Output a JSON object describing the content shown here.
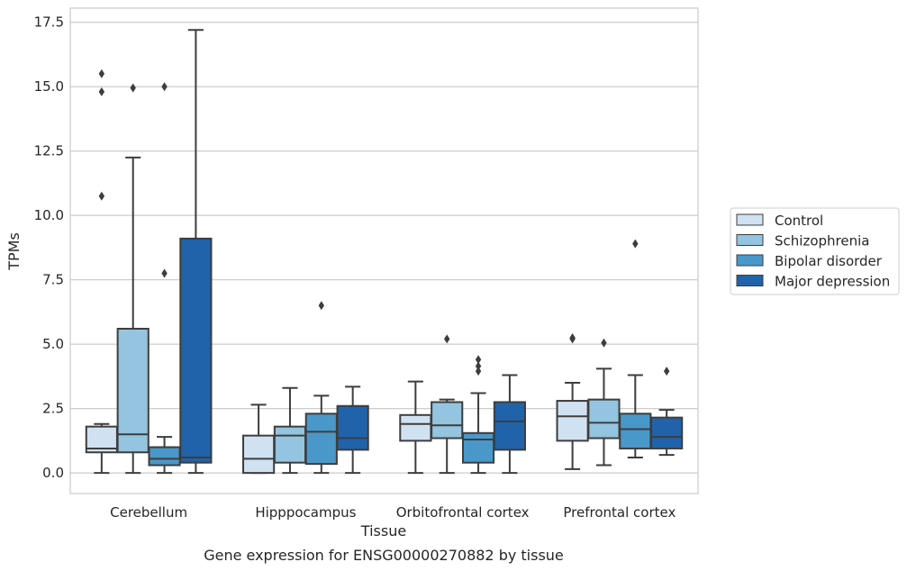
{
  "chart_data": {
    "type": "box",
    "caption": "Gene expression for ENSG00000270882 by tissue",
    "xlabel": "Tissue",
    "ylabel": "TPMs",
    "ylim": [
      -0.8,
      18.05
    ],
    "yticks": [
      0.0,
      2.5,
      5.0,
      7.5,
      10.0,
      12.5,
      15.0,
      17.5
    ],
    "ytick_labels": [
      "0.0",
      "2.5",
      "5.0",
      "7.5",
      "10.0",
      "12.5",
      "15.0",
      "17.5"
    ],
    "grid": "horizontal",
    "legend_position": "right",
    "categories": [
      "Cerebellum",
      "Hipppocampus",
      "Orbitofrontal cortex",
      "Prefrontal cortex"
    ],
    "series": [
      {
        "name": "Control",
        "color": "#d0e1f2",
        "boxes": [
          {
            "whislo": 0.0,
            "q1": 0.8,
            "med": 0.95,
            "q3": 1.8,
            "whishi": 1.9,
            "fliers": [
              15.5,
              14.8,
              10.75
            ]
          },
          {
            "whislo": 0.0,
            "q1": 0.0,
            "med": 0.55,
            "q3": 1.45,
            "whishi": 2.65,
            "fliers": []
          },
          {
            "whislo": 0.0,
            "q1": 1.25,
            "med": 1.9,
            "q3": 2.25,
            "whishi": 3.55,
            "fliers": []
          },
          {
            "whislo": 0.15,
            "q1": 1.25,
            "med": 2.2,
            "q3": 2.8,
            "whishi": 3.5,
            "fliers": [
              5.25,
              5.2
            ]
          }
        ]
      },
      {
        "name": "Schizophrenia",
        "color": "#94c4df",
        "boxes": [
          {
            "whislo": 0.0,
            "q1": 0.8,
            "med": 1.5,
            "q3": 5.6,
            "whishi": 12.25,
            "fliers": [
              14.95
            ]
          },
          {
            "whislo": 0.0,
            "q1": 0.4,
            "med": 1.45,
            "q3": 1.8,
            "whishi": 3.3,
            "fliers": []
          },
          {
            "whislo": 0.0,
            "q1": 1.35,
            "med": 1.85,
            "q3": 2.75,
            "whishi": 2.85,
            "fliers": [
              5.2
            ]
          },
          {
            "whislo": 0.3,
            "q1": 1.35,
            "med": 1.95,
            "q3": 2.85,
            "whishi": 4.05,
            "fliers": [
              5.05
            ]
          }
        ]
      },
      {
        "name": "Bipolar disorder",
        "color": "#4a98c9",
        "boxes": [
          {
            "whislo": 0.0,
            "q1": 0.3,
            "med": 0.55,
            "q3": 1.0,
            "whishi": 1.4,
            "fliers": [
              15.0,
              7.75
            ]
          },
          {
            "whislo": 0.0,
            "q1": 0.35,
            "med": 1.6,
            "q3": 2.3,
            "whishi": 3.0,
            "fliers": [
              6.5
            ]
          },
          {
            "whislo": 0.0,
            "q1": 0.4,
            "med": 1.3,
            "q3": 1.55,
            "whishi": 3.1,
            "fliers": [
              4.4,
              4.15,
              3.95
            ]
          },
          {
            "whislo": 0.6,
            "q1": 0.95,
            "med": 1.7,
            "q3": 2.3,
            "whishi": 3.8,
            "fliers": [
              8.9
            ]
          }
        ]
      },
      {
        "name": "Major depression",
        "color": "#2163aa",
        "boxes": [
          {
            "whislo": 0.0,
            "q1": 0.4,
            "med": 0.6,
            "q3": 9.1,
            "whishi": 17.2,
            "fliers": []
          },
          {
            "whislo": 0.0,
            "q1": 0.9,
            "med": 1.35,
            "q3": 2.6,
            "whishi": 3.35,
            "fliers": []
          },
          {
            "whislo": 0.0,
            "q1": 0.9,
            "med": 2.0,
            "q3": 2.75,
            "whishi": 3.8,
            "fliers": []
          },
          {
            "whislo": 0.7,
            "q1": 0.95,
            "med": 1.4,
            "q3": 2.15,
            "whishi": 2.45,
            "fliers": [
              3.95
            ]
          }
        ]
      }
    ]
  }
}
